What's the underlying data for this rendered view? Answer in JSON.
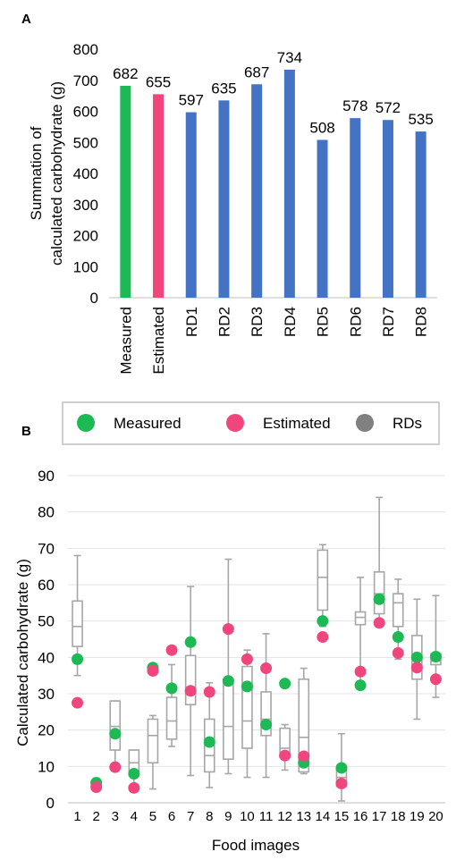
{
  "chart_data": [
    {
      "panel": "A",
      "type": "bar",
      "categories": [
        "Measured",
        "Estimated",
        "RD1",
        "RD2",
        "RD3",
        "RD4",
        "RD5",
        "RD6",
        "RD7",
        "RD8"
      ],
      "values": [
        682,
        655,
        597,
        635,
        687,
        734,
        508,
        578,
        572,
        535
      ],
      "colors": [
        "#1db954",
        "#f0457d",
        "#4472c4",
        "#4472c4",
        "#4472c4",
        "#4472c4",
        "#4472c4",
        "#4472c4",
        "#4472c4",
        "#4472c4"
      ],
      "ylabel": "Summation of calculated carbohydrate (g)",
      "ylim": [
        0,
        800
      ],
      "yticks": [
        "0",
        "100",
        "200",
        "300",
        "400",
        "500",
        "600",
        "700",
        "800"
      ],
      "grid": false
    },
    {
      "panel": "B",
      "type": "scatter",
      "xlabel": "Food images",
      "ylabel": "Calculated carbohydrate (g)",
      "ylim": [
        0,
        90
      ],
      "yticks": [
        "0",
        "10",
        "20",
        "30",
        "40",
        "50",
        "60",
        "70",
        "80",
        "90"
      ],
      "x": [
        "1",
        "2",
        "3",
        "4",
        "5",
        "6",
        "7",
        "8",
        "9",
        "10",
        "11",
        "12",
        "13",
        "14",
        "15",
        "16",
        "17",
        "18",
        "19",
        "20"
      ],
      "grid": true,
      "legend_position": "top",
      "legend": [
        {
          "label": "Measured",
          "color": "#1db954"
        },
        {
          "label": "Estimated",
          "color": "#f0457d"
        },
        {
          "label": "RDs",
          "color": "#808080"
        }
      ],
      "series": [
        {
          "name": "Measured",
          "color": "#1db954",
          "values": [
            39.5,
            5.5,
            19,
            8,
            37.2,
            31.5,
            44.2,
            16.7,
            33.5,
            32,
            21.5,
            32.8,
            11,
            50,
            9.6,
            32.3,
            56,
            45.6,
            40,
            40.2
          ]
        },
        {
          "name": "Estimated",
          "color": "#f0457d",
          "values": [
            27.5,
            4.3,
            9.8,
            4.1,
            36.3,
            42,
            30.8,
            30.5,
            47.8,
            39.5,
            37,
            13,
            12.8,
            45.6,
            5.3,
            36.1,
            49.5,
            41.2,
            37.2,
            34
          ]
        }
      ],
      "boxes": [
        {
          "min": 35,
          "q1": 43,
          "median": 48.5,
          "q3": 55.5,
          "max": 68
        },
        {
          "min": 4,
          "q1": 4.5,
          "median": 5.2,
          "q3": 6,
          "max": 6.8
        },
        {
          "min": 10,
          "q1": 14.5,
          "median": 21,
          "q3": 28,
          "max": 28
        },
        {
          "min": 4,
          "q1": 7.5,
          "median": 11,
          "q3": 14.5,
          "max": 14.5
        },
        {
          "min": 3.8,
          "q1": 11,
          "median": 18.5,
          "q3": 23,
          "max": 24
        },
        {
          "min": 15.5,
          "q1": 17.5,
          "median": 22.5,
          "q3": 29,
          "max": 38
        },
        {
          "min": 7.5,
          "q1": 27,
          "median": 31.5,
          "q3": 40.5,
          "max": 59.5
        },
        {
          "min": 4.2,
          "q1": 8.5,
          "median": 13,
          "q3": 23,
          "max": 33
        },
        {
          "min": 8,
          "q1": 12,
          "median": 21,
          "q3": 34,
          "max": 67
        },
        {
          "min": 7,
          "q1": 15,
          "median": 22.5,
          "q3": 37.5,
          "max": 42
        },
        {
          "min": 7,
          "q1": 18.5,
          "median": 23,
          "q3": 30.5,
          "max": 46.5
        },
        {
          "min": 9,
          "q1": 12.5,
          "median": 15,
          "q3": 20.5,
          "max": 21.5
        },
        {
          "min": 8,
          "q1": 8.5,
          "median": 18,
          "q3": 34,
          "max": 37
        },
        {
          "min": 48.5,
          "q1": 53,
          "median": 62,
          "q3": 69.5,
          "max": 71
        },
        {
          "min": 0.5,
          "q1": 4.5,
          "median": 7,
          "q3": 9.5,
          "max": 19
        },
        {
          "min": 32,
          "q1": 49,
          "median": 51,
          "q3": 52.5,
          "max": 62
        },
        {
          "min": 49,
          "q1": 52,
          "median": 57.5,
          "q3": 63.5,
          "max": 84
        },
        {
          "min": 39.5,
          "q1": 48.5,
          "median": 55,
          "q3": 57.5,
          "max": 61.5
        },
        {
          "min": 23,
          "q1": 34,
          "median": 40.5,
          "q3": 46,
          "max": 56
        },
        {
          "min": 29,
          "q1": 38,
          "median": 39,
          "q3": 41,
          "max": 57
        }
      ]
    }
  ]
}
